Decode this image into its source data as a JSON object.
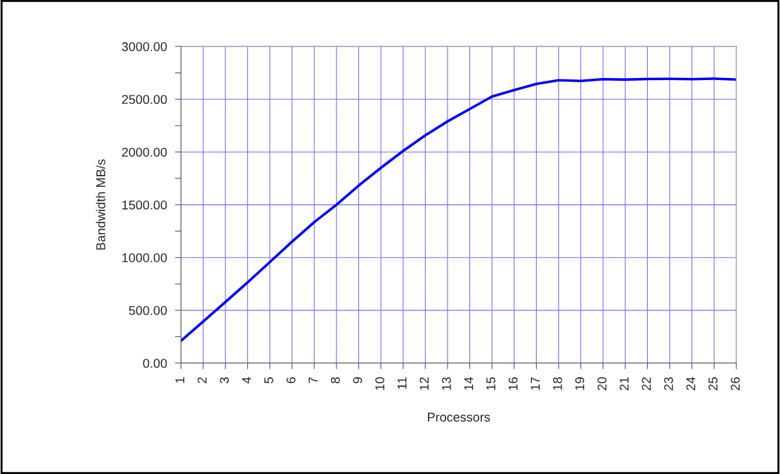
{
  "chart_data": {
    "type": "line",
    "xlabel": "Processors",
    "ylabel": "Bandwidth MB/s",
    "categories": [
      "1",
      "2",
      "3",
      "4",
      "5",
      "6",
      "7",
      "8",
      "9",
      "10",
      "11",
      "12",
      "13",
      "14",
      "15",
      "16",
      "17",
      "18",
      "19",
      "20",
      "21",
      "22",
      "23",
      "24",
      "25",
      "26"
    ],
    "series": [
      {
        "color": "#0000ff",
        "values": [
          210,
          393,
          578,
          765,
          957,
          1150,
          1335,
          1500,
          1682,
          1850,
          2010,
          2158,
          2290,
          2407,
          2525,
          2587,
          2645,
          2680,
          2673,
          2690,
          2686,
          2692,
          2693,
          2690,
          2695,
          2687
        ]
      }
    ],
    "ylim": [
      0,
      3000
    ],
    "yticks": [
      {
        "value": 0,
        "label": "0.00"
      },
      {
        "value": 250,
        "label": null
      },
      {
        "value": 500,
        "label": "500.00"
      },
      {
        "value": 750,
        "label": null
      },
      {
        "value": 1000,
        "label": "1000.00"
      },
      {
        "value": 1250,
        "label": null
      },
      {
        "value": 1500,
        "label": "1500.00"
      },
      {
        "value": 1750,
        "label": null
      },
      {
        "value": 2000,
        "label": "2000.00"
      },
      {
        "value": 2250,
        "label": null
      },
      {
        "value": 2500,
        "label": "2500.00"
      },
      {
        "value": 2750,
        "label": null
      },
      {
        "value": 3000,
        "label": "3000.00"
      }
    ],
    "grid": true,
    "marker": "none",
    "line_style": "solid"
  }
}
